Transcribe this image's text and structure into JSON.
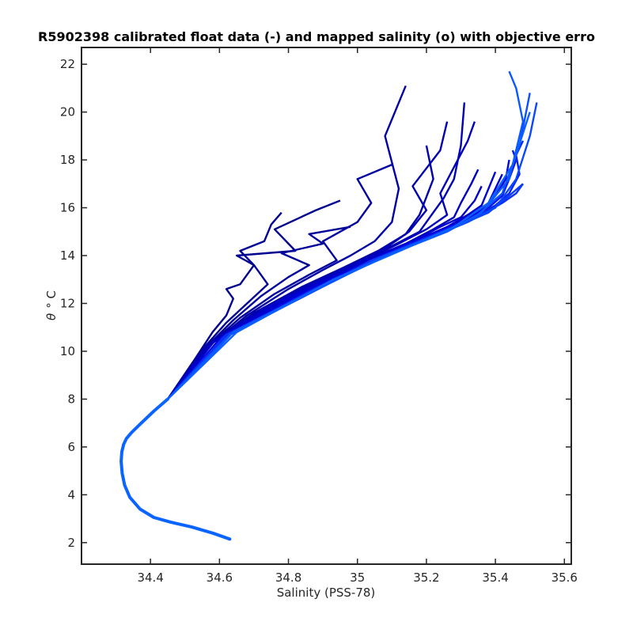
{
  "chart_data": {
    "type": "line",
    "title": "R5902398 calibrated float data (-) and mapped salinity (o) with objective erro",
    "xlabel": "Salinity (PSS-78)",
    "ylabel_symbol": "θ",
    "ylabel_unit": "° C",
    "xlim": [
      34.2,
      35.62
    ],
    "ylim": [
      1.1,
      22.7
    ],
    "x_ticks": [
      34.4,
      34.6,
      34.8,
      35,
      35.2,
      35.4,
      35.6
    ],
    "x_tick_labels": [
      "34.4",
      "34.6",
      "34.8",
      "35",
      "35.2",
      "35.4",
      "35.6"
    ],
    "y_ticks": [
      2,
      4,
      6,
      8,
      10,
      12,
      14,
      16,
      18,
      20,
      22
    ],
    "y_tick_labels": [
      "2",
      "4",
      "6",
      "8",
      "10",
      "12",
      "14",
      "16",
      "18",
      "20",
      "22"
    ],
    "grid": false,
    "colors": {
      "dark_profile": "#00008f",
      "light_profile": "#0a64ff",
      "axis": "#262626"
    },
    "deep_section": {
      "x": [
        34.63,
        34.58,
        34.52,
        34.46,
        34.41,
        34.37,
        34.34,
        34.325,
        34.318,
        34.315,
        34.317,
        34.322,
        34.33,
        34.345,
        34.37,
        34.41,
        34.45
      ],
      "y": [
        2.15,
        2.4,
        2.65,
        2.85,
        3.05,
        3.4,
        3.9,
        4.4,
        4.9,
        5.4,
        5.8,
        6.1,
        6.35,
        6.6,
        6.95,
        7.5,
        8.0
      ]
    },
    "profiles": [
      {
        "color": "#00008f",
        "x": [
          34.45,
          34.53,
          34.58,
          34.62,
          34.64,
          34.62,
          34.66,
          34.7,
          34.65,
          34.82,
          34.76,
          34.88,
          34.95
        ],
        "y": [
          8.0,
          9.7,
          10.8,
          11.5,
          12.2,
          12.6,
          12.8,
          13.6,
          14.0,
          14.2,
          15.1,
          15.9,
          16.3
        ]
      },
      {
        "color": "#000096",
        "x": [
          34.45,
          34.54,
          34.62,
          34.68,
          34.74,
          34.7,
          34.66,
          34.73,
          34.75,
          34.78
        ],
        "y": [
          8.0,
          9.9,
          11.2,
          12.0,
          12.8,
          13.6,
          14.2,
          14.6,
          15.3,
          15.8
        ]
      },
      {
        "color": "#00009b",
        "x": [
          34.45,
          34.55,
          34.64,
          34.72,
          34.8,
          34.86,
          34.78,
          34.9,
          34.86,
          34.98
        ],
        "y": [
          8.0,
          10.0,
          11.3,
          12.3,
          13.1,
          13.6,
          14.1,
          14.5,
          14.9,
          15.2
        ]
      },
      {
        "color": "#0000a0",
        "x": [
          34.45,
          34.55,
          34.66,
          34.76,
          34.86,
          34.94,
          34.9,
          35.0,
          35.04,
          35.0,
          35.1
        ],
        "y": [
          8.0,
          10.0,
          11.4,
          12.4,
          13.2,
          13.8,
          14.6,
          15.4,
          16.2,
          17.2,
          17.8
        ]
      },
      {
        "color": "#0000a5",
        "x": [
          34.45,
          34.56,
          34.68,
          34.8,
          34.9,
          34.98,
          35.05,
          35.1,
          35.12,
          35.08,
          35.14
        ],
        "y": [
          8.0,
          10.1,
          11.5,
          12.6,
          13.4,
          14.0,
          14.6,
          15.4,
          16.8,
          19.0,
          21.1
        ]
      },
      {
        "color": "#0000aa",
        "x": [
          34.45,
          34.56,
          34.7,
          34.84,
          34.96,
          35.06,
          35.14,
          35.18,
          35.22,
          35.2
        ],
        "y": [
          8.0,
          10.2,
          11.6,
          12.7,
          13.5,
          14.2,
          14.9,
          15.7,
          17.2,
          18.6
        ]
      },
      {
        "color": "#0000b0",
        "x": [
          34.45,
          34.57,
          34.72,
          34.86,
          34.98,
          35.08,
          35.15,
          35.2,
          35.16,
          35.24,
          35.26
        ],
        "y": [
          8.0,
          10.3,
          11.7,
          12.8,
          13.6,
          14.3,
          15.0,
          15.9,
          16.9,
          18.4,
          19.6
        ]
      },
      {
        "color": "#0000b5",
        "x": [
          34.45,
          34.57,
          34.73,
          34.88,
          35.0,
          35.1,
          35.18,
          35.22,
          35.25,
          35.28,
          35.3,
          35.31
        ],
        "y": [
          8.0,
          10.3,
          11.8,
          12.9,
          13.7,
          14.4,
          15.0,
          15.8,
          16.4,
          17.2,
          18.6,
          20.4
        ]
      },
      {
        "color": "#0000ba",
        "x": [
          34.45,
          34.58,
          34.74,
          34.9,
          35.02,
          35.12,
          35.2,
          35.26,
          35.24,
          35.32,
          35.34
        ],
        "y": [
          8.0,
          10.4,
          11.9,
          13.0,
          13.8,
          14.5,
          15.1,
          15.7,
          16.6,
          18.8,
          19.6
        ]
      },
      {
        "color": "#0000c0",
        "x": [
          34.45,
          34.58,
          34.76,
          34.92,
          35.04,
          35.14,
          35.22,
          35.28,
          35.3,
          35.33,
          35.35
        ],
        "y": [
          8.0,
          10.4,
          12.0,
          13.1,
          13.9,
          14.5,
          15.1,
          15.6,
          16.2,
          17.0,
          17.6
        ]
      },
      {
        "color": "#0000c8",
        "x": [
          34.45,
          34.59,
          34.78,
          34.94,
          35.06,
          35.16,
          35.24,
          35.3,
          35.34,
          35.36
        ],
        "y": [
          8.0,
          10.5,
          12.1,
          13.2,
          14.0,
          14.6,
          15.2,
          15.6,
          16.3,
          16.9
        ]
      },
      {
        "color": "#0000d0",
        "x": [
          34.45,
          34.6,
          34.8,
          34.96,
          35.08,
          35.18,
          35.26,
          35.32,
          35.36,
          35.38,
          35.4
        ],
        "y": [
          8.0,
          10.5,
          12.2,
          13.3,
          14.1,
          14.7,
          15.2,
          15.7,
          16.1,
          16.8,
          17.5
        ]
      },
      {
        "color": "#0000d8",
        "x": [
          34.45,
          34.6,
          34.82,
          34.98,
          35.1,
          35.2,
          35.28,
          35.34,
          35.38,
          35.4,
          35.42
        ],
        "y": [
          8.0,
          10.5,
          12.3,
          13.4,
          14.2,
          14.8,
          15.3,
          15.8,
          16.2,
          16.8,
          17.4
        ]
      },
      {
        "color": "#0505e0",
        "x": [
          34.45,
          34.61,
          34.84,
          35.0,
          35.12,
          35.22,
          35.3,
          35.36,
          35.4,
          35.43,
          35.44
        ],
        "y": [
          8.0,
          10.6,
          12.4,
          13.5,
          14.3,
          14.9,
          15.4,
          15.9,
          16.5,
          17.2,
          18.0
        ]
      },
      {
        "color": "#0a14e8",
        "x": [
          34.45,
          34.61,
          34.85,
          35.02,
          35.14,
          35.24,
          35.32,
          35.38,
          35.42,
          35.44,
          35.46,
          35.45
        ],
        "y": [
          8.0,
          10.6,
          12.4,
          13.6,
          14.4,
          15.0,
          15.5,
          16.0,
          16.5,
          17.2,
          18.0,
          18.4
        ]
      },
      {
        "color": "#0a24f0",
        "x": [
          34.45,
          34.62,
          34.86,
          35.03,
          35.16,
          35.26,
          35.34,
          35.4,
          35.44,
          35.47,
          35.46,
          35.48
        ],
        "y": [
          8.0,
          10.6,
          12.5,
          13.7,
          14.5,
          15.1,
          15.6,
          16.1,
          16.6,
          17.4,
          18.2,
          18.8
        ]
      },
      {
        "color": "#0a30f5",
        "x": [
          34.45,
          34.62,
          34.87,
          35.04,
          35.18,
          35.28,
          35.36,
          35.42,
          35.46,
          35.48
        ],
        "y": [
          8.0,
          10.7,
          12.5,
          13.8,
          14.6,
          15.2,
          15.7,
          16.2,
          16.6,
          17.0
        ]
      },
      {
        "color": "#0a3cfa",
        "x": [
          34.45,
          34.63,
          34.88,
          35.06,
          35.2,
          35.3,
          35.38,
          35.44,
          35.48
        ],
        "y": [
          8.0,
          10.7,
          12.6,
          13.9,
          14.7,
          15.3,
          15.8,
          16.5,
          17.0
        ]
      },
      {
        "color": "#0a48ff",
        "x": [
          34.45,
          34.63,
          34.9,
          35.08,
          35.22,
          35.32,
          35.4,
          35.46,
          35.5,
          35.52
        ],
        "y": [
          8.0,
          10.7,
          12.7,
          14.0,
          14.8,
          15.4,
          16.0,
          17.2,
          19.0,
          20.4
        ]
      },
      {
        "color": "#0a50ff",
        "x": [
          34.45,
          34.64,
          34.91,
          35.1,
          35.24,
          35.34,
          35.42,
          35.47,
          35.5
        ],
        "y": [
          8.0,
          10.8,
          12.8,
          14.1,
          14.9,
          15.6,
          16.6,
          18.6,
          20.8
        ]
      },
      {
        "color": "#0a58ff",
        "x": [
          34.45,
          34.64,
          34.92,
          35.12,
          35.26,
          35.36,
          35.44,
          35.48,
          35.46,
          35.44
        ],
        "y": [
          8.0,
          10.8,
          12.9,
          14.2,
          15.0,
          15.8,
          17.2,
          19.6,
          21.0,
          21.7
        ]
      },
      {
        "color": "#0a60ff",
        "x": [
          34.45,
          34.65,
          34.93,
          35.14,
          35.28,
          35.38,
          35.45,
          35.5
        ],
        "y": [
          8.0,
          10.8,
          13.0,
          14.3,
          15.2,
          16.2,
          17.8,
          20.0
        ]
      }
    ]
  }
}
